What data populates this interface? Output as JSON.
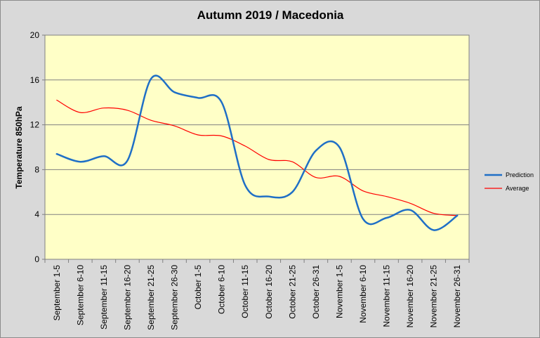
{
  "chart_data": {
    "type": "line",
    "title": "Autumn 2019 / Macedonia",
    "xlabel": "",
    "ylabel": "Temperature 850hPa",
    "ylim": [
      0,
      20
    ],
    "yticks": [
      0,
      4,
      8,
      12,
      16,
      20
    ],
    "grid": true,
    "legend_position": "right",
    "categories": [
      "September 1-5",
      "September 6-10",
      "September 11-15",
      "September 16-20",
      "September 21-25",
      "September 26-30",
      "October 1-5",
      "October 6-10",
      "October 11-15",
      "October 16-20",
      "October 21-25",
      "October 26-31",
      "November 1-5",
      "November 6-10",
      "November 11-15",
      "November 16-20",
      "November 21-25",
      "November 26-31"
    ],
    "series": [
      {
        "name": "Prediction",
        "color": "#1f6fc6",
        "values": [
          9.4,
          8.7,
          9.2,
          8.8,
          16.1,
          14.9,
          14.4,
          14.0,
          6.6,
          5.6,
          6.0,
          9.7,
          10.0,
          3.6,
          3.7,
          4.4,
          2.6,
          3.9
        ]
      },
      {
        "name": "Average",
        "color": "#ff0000",
        "values": [
          14.2,
          13.1,
          13.5,
          13.3,
          12.4,
          11.9,
          11.1,
          11.0,
          10.1,
          8.9,
          8.7,
          7.3,
          7.4,
          6.1,
          5.6,
          5.0,
          4.1,
          3.9
        ]
      }
    ]
  },
  "colors": {
    "plot_background": "#ffffc7",
    "chart_background": "#d9d9d9",
    "gridline": "#808080"
  }
}
